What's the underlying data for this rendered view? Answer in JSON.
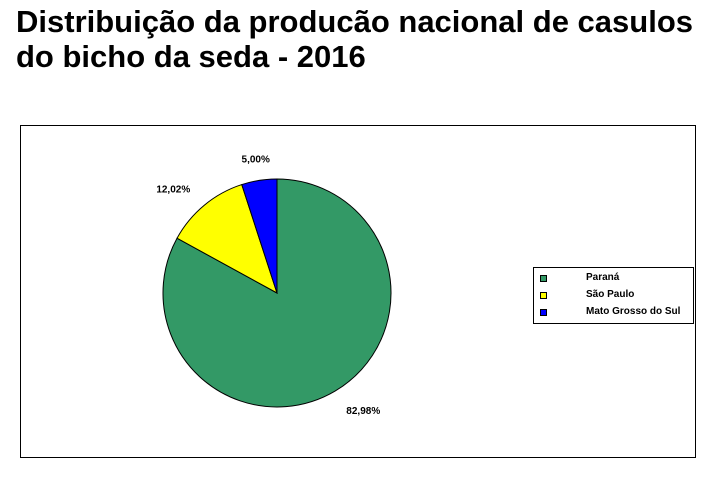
{
  "title": "Distribuição da producão nacional de casulos do bicho da seda - 2016",
  "chart_data": {
    "type": "pie",
    "title": "Distribuição da producão nacional de casulos do bicho da seda - 2016",
    "slices": [
      {
        "name": "Paraná",
        "value": 82.98,
        "label": "82,98%",
        "color": "#339966"
      },
      {
        "name": "São Paulo",
        "value": 12.02,
        "label": "12,02%",
        "color": "#FFFF00"
      },
      {
        "name": "Mato Grosso do Sul",
        "value": 5.0,
        "label": "5,00%",
        "color": "#0000FF"
      }
    ],
    "start": "12 o'clock",
    "direction": "clockwise",
    "legend_position": "right",
    "legend": [
      "Paraná",
      "São Paulo",
      "Mato Grosso do Sul"
    ]
  }
}
